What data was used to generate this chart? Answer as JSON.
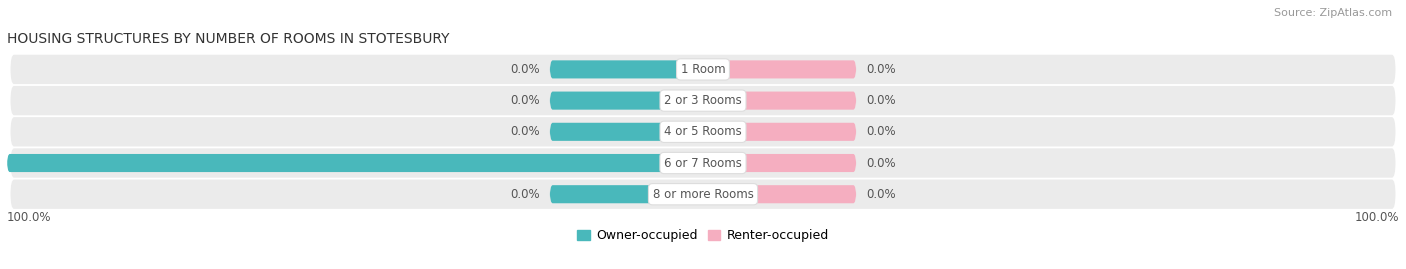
{
  "title": "HOUSING STRUCTURES BY NUMBER OF ROOMS IN STOTESBURY",
  "source": "Source: ZipAtlas.com",
  "categories": [
    "1 Room",
    "2 or 3 Rooms",
    "4 or 5 Rooms",
    "6 or 7 Rooms",
    "8 or more Rooms"
  ],
  "owner_values": [
    0.0,
    0.0,
    0.0,
    100.0,
    0.0
  ],
  "renter_values": [
    0.0,
    0.0,
    0.0,
    0.0,
    0.0
  ],
  "owner_color": "#49b8bb",
  "renter_color": "#f5aec0",
  "row_bg_color": "#ebebeb",
  "xlim_left": -100,
  "xlim_right": 100,
  "min_bar_size": 12,
  "x_left_label": "100.0%",
  "x_right_label": "100.0%",
  "title_fontsize": 10,
  "source_fontsize": 8,
  "label_fontsize": 8.5,
  "category_fontsize": 8.5,
  "legend_fontsize": 9,
  "background_color": "#ffffff",
  "text_color": "#555555",
  "source_color": "#999999"
}
